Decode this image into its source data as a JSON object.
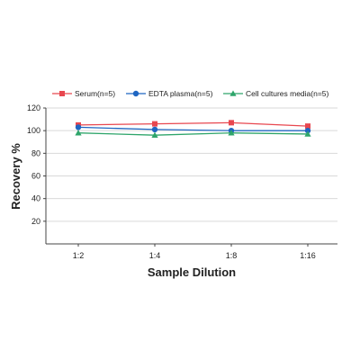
{
  "chart_data": {
    "type": "line",
    "categories": [
      "1:2",
      "1:4",
      "1:8",
      "1:16"
    ],
    "series": [
      {
        "name": "Serum(n=5)",
        "values": [
          105,
          106,
          107,
          104
        ],
        "color": "#e8474f",
        "marker": "square"
      },
      {
        "name": "EDTA plasma(n=5)",
        "values": [
          103,
          101,
          100,
          100
        ],
        "color": "#1f66c2",
        "marker": "circle"
      },
      {
        "name": "Cell cultures media(n=5)",
        "values": [
          98,
          96,
          98,
          97
        ],
        "color": "#2ea56a",
        "marker": "triangle"
      }
    ],
    "xlabel": "Sample Dilution",
    "ylabel": "Recovery %",
    "ylim": [
      0,
      120
    ],
    "yticks": [
      20,
      40,
      60,
      80,
      100,
      120
    ],
    "grid": true,
    "legend_position": "top"
  }
}
